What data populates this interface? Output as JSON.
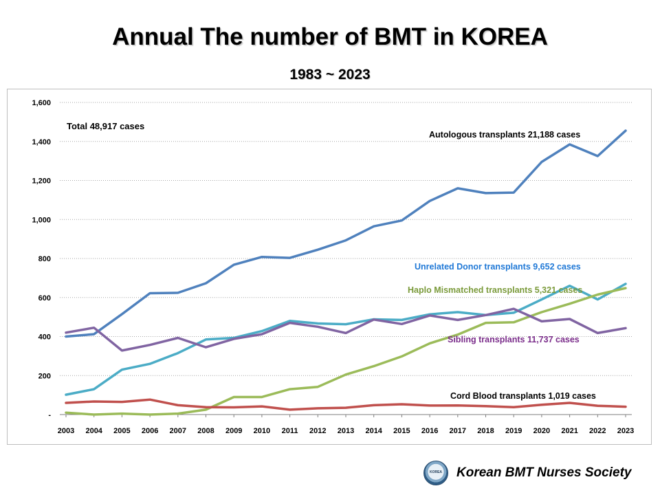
{
  "header": {
    "title": "Annual The number of BMT in KOREA",
    "subtitle": "1983 ~ 2023"
  },
  "footer": {
    "society": "Korean BMT Nurses Society",
    "logo_text": "KOREA"
  },
  "chart_data": {
    "type": "line",
    "title": "Annual The number of BMT in KOREA",
    "subtitle": "1983 ~ 2023",
    "xlabel": "",
    "ylabel": "",
    "ylim": [
      0,
      1600
    ],
    "yticks": [
      0,
      200,
      400,
      600,
      800,
      1000,
      1200,
      1400,
      1600
    ],
    "ytick_labels": [
      "-",
      "200",
      "400",
      "600",
      "800",
      "1,000",
      "1,200",
      "1,400",
      "1,600"
    ],
    "grid": "horizontal dotted",
    "categories": [
      "2003",
      "2004",
      "2005",
      "2006",
      "2007",
      "2008",
      "2009",
      "2010",
      "2011",
      "2012",
      "2013",
      "2014",
      "2015",
      "2016",
      "2017",
      "2018",
      "2019",
      "2020",
      "2021",
      "2022",
      "2023"
    ],
    "annotations": [
      {
        "text": "Total 48,917 cases",
        "color": "#000000"
      }
    ],
    "series": [
      {
        "name": "Autologous transplants 21,188 cases",
        "label": "Autologous transplants  21,188 cases",
        "color": "#4f81bd",
        "label_color": "#000000",
        "values": [
          400,
          412,
          515,
          622,
          624,
          673,
          768,
          808,
          803,
          845,
          893,
          965,
          995,
          1095,
          1160,
          1135,
          1138,
          1295,
          1385,
          1325,
          1455
        ]
      },
      {
        "name": "Unrelated Donor transplants 9,652 cases",
        "label": "Unrelated  Donor transplants 9,652 cases",
        "color": "#4bacc6",
        "label_color": "#1f78d6",
        "values": [
          102,
          130,
          230,
          260,
          315,
          385,
          393,
          428,
          480,
          467,
          463,
          488,
          485,
          514,
          525,
          510,
          522,
          590,
          660,
          590,
          670
        ]
      },
      {
        "name": "Haplo Mismatched transplants 5,321 cases",
        "label": "Haplo  Mismatched transplants  5,321 cases",
        "color": "#9bbb59",
        "label_color": "#7a9a3a",
        "values": [
          10,
          0,
          5,
          0,
          5,
          25,
          90,
          90,
          130,
          142,
          205,
          248,
          298,
          365,
          410,
          470,
          473,
          525,
          568,
          615,
          648
        ]
      },
      {
        "name": "Sibling transplants 11,737 cases",
        "label": "Sibling  transplants 11,737 cases",
        "color": "#8064a2",
        "label_color": "#7a2c8a",
        "values": [
          420,
          445,
          328,
          357,
          393,
          345,
          388,
          412,
          470,
          450,
          418,
          487,
          464,
          508,
          485,
          510,
          542,
          478,
          490,
          418,
          443
        ]
      },
      {
        "name": "Cord Blood transplants 1,019 cases",
        "label": "Cord Blood transplants  1,019 cases",
        "color": "#c0504d",
        "label_color": "#000000",
        "values": [
          60,
          67,
          65,
          77,
          48,
          38,
          37,
          42,
          25,
          32,
          35,
          48,
          53,
          46,
          47,
          43,
          38,
          50,
          60,
          45,
          40
        ]
      }
    ]
  }
}
